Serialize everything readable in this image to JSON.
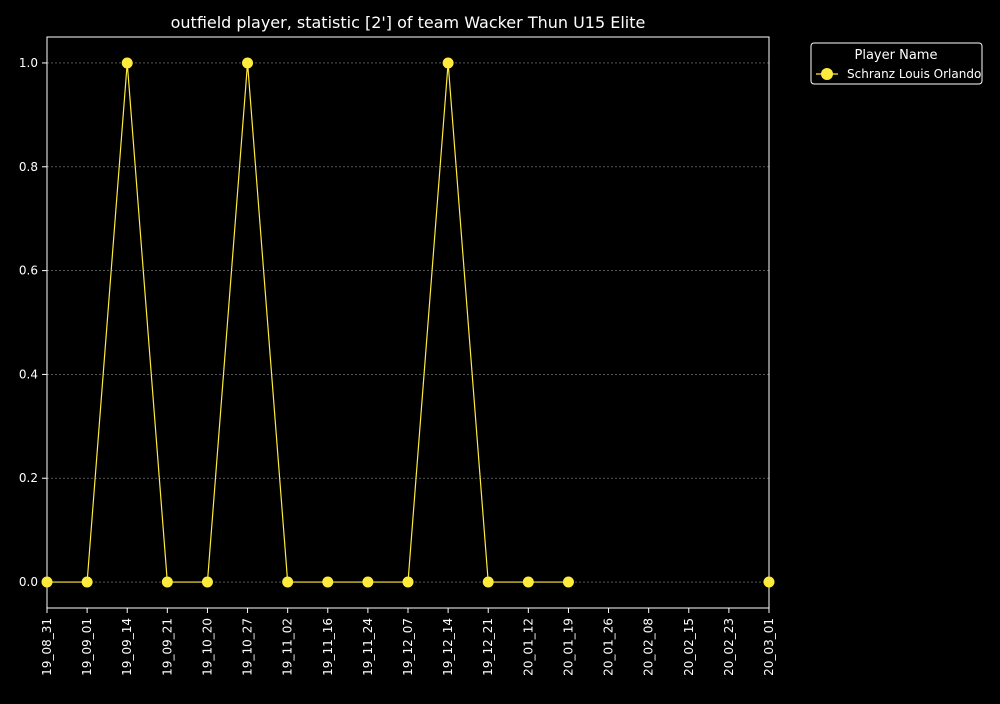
{
  "chart_data": {
    "type": "line",
    "title": "outfield player, statistic [2'] of team Wacker Thun U15 Elite",
    "xlabel": "",
    "ylabel": "",
    "categories": [
      "19_08_31",
      "19_09_01",
      "19_09_14",
      "19_09_21",
      "19_10_20",
      "19_10_27",
      "19_11_02",
      "19_11_16",
      "19_11_24",
      "19_12_07",
      "19_12_14",
      "19_12_21",
      "20_01_12",
      "20_01_19",
      "20_01_26",
      "20_02_08",
      "20_02_15",
      "20_02_23",
      "20_03_01"
    ],
    "yticks": [
      "0.0",
      "0.2",
      "0.4",
      "0.6",
      "0.8",
      "1.0"
    ],
    "ylim": [
      -0.05,
      1.05
    ],
    "grid": true,
    "legend": {
      "title": "Player Name",
      "placement": "outside-top-right"
    },
    "series": [
      {
        "name": "Schranz Louis Orlando",
        "color": "#ffeb3b",
        "segments": [
          {
            "x": [
              "19_08_31",
              "19_09_01",
              "19_09_14",
              "19_09_21",
              "19_10_20",
              "19_10_27",
              "19_11_02",
              "19_11_16",
              "19_11_24",
              "19_12_07",
              "19_12_14",
              "19_12_21",
              "20_01_12",
              "20_01_19"
            ],
            "values": [
              0,
              0,
              1,
              0,
              0,
              1,
              0,
              0,
              0,
              0,
              1,
              0,
              0,
              0
            ]
          },
          {
            "x": [
              "20_03_01"
            ],
            "values": [
              0
            ]
          }
        ]
      }
    ]
  },
  "colors": {
    "background": "#000000",
    "foreground": "#ffffff",
    "grid": "#888888",
    "series": "#ffeb3b"
  }
}
